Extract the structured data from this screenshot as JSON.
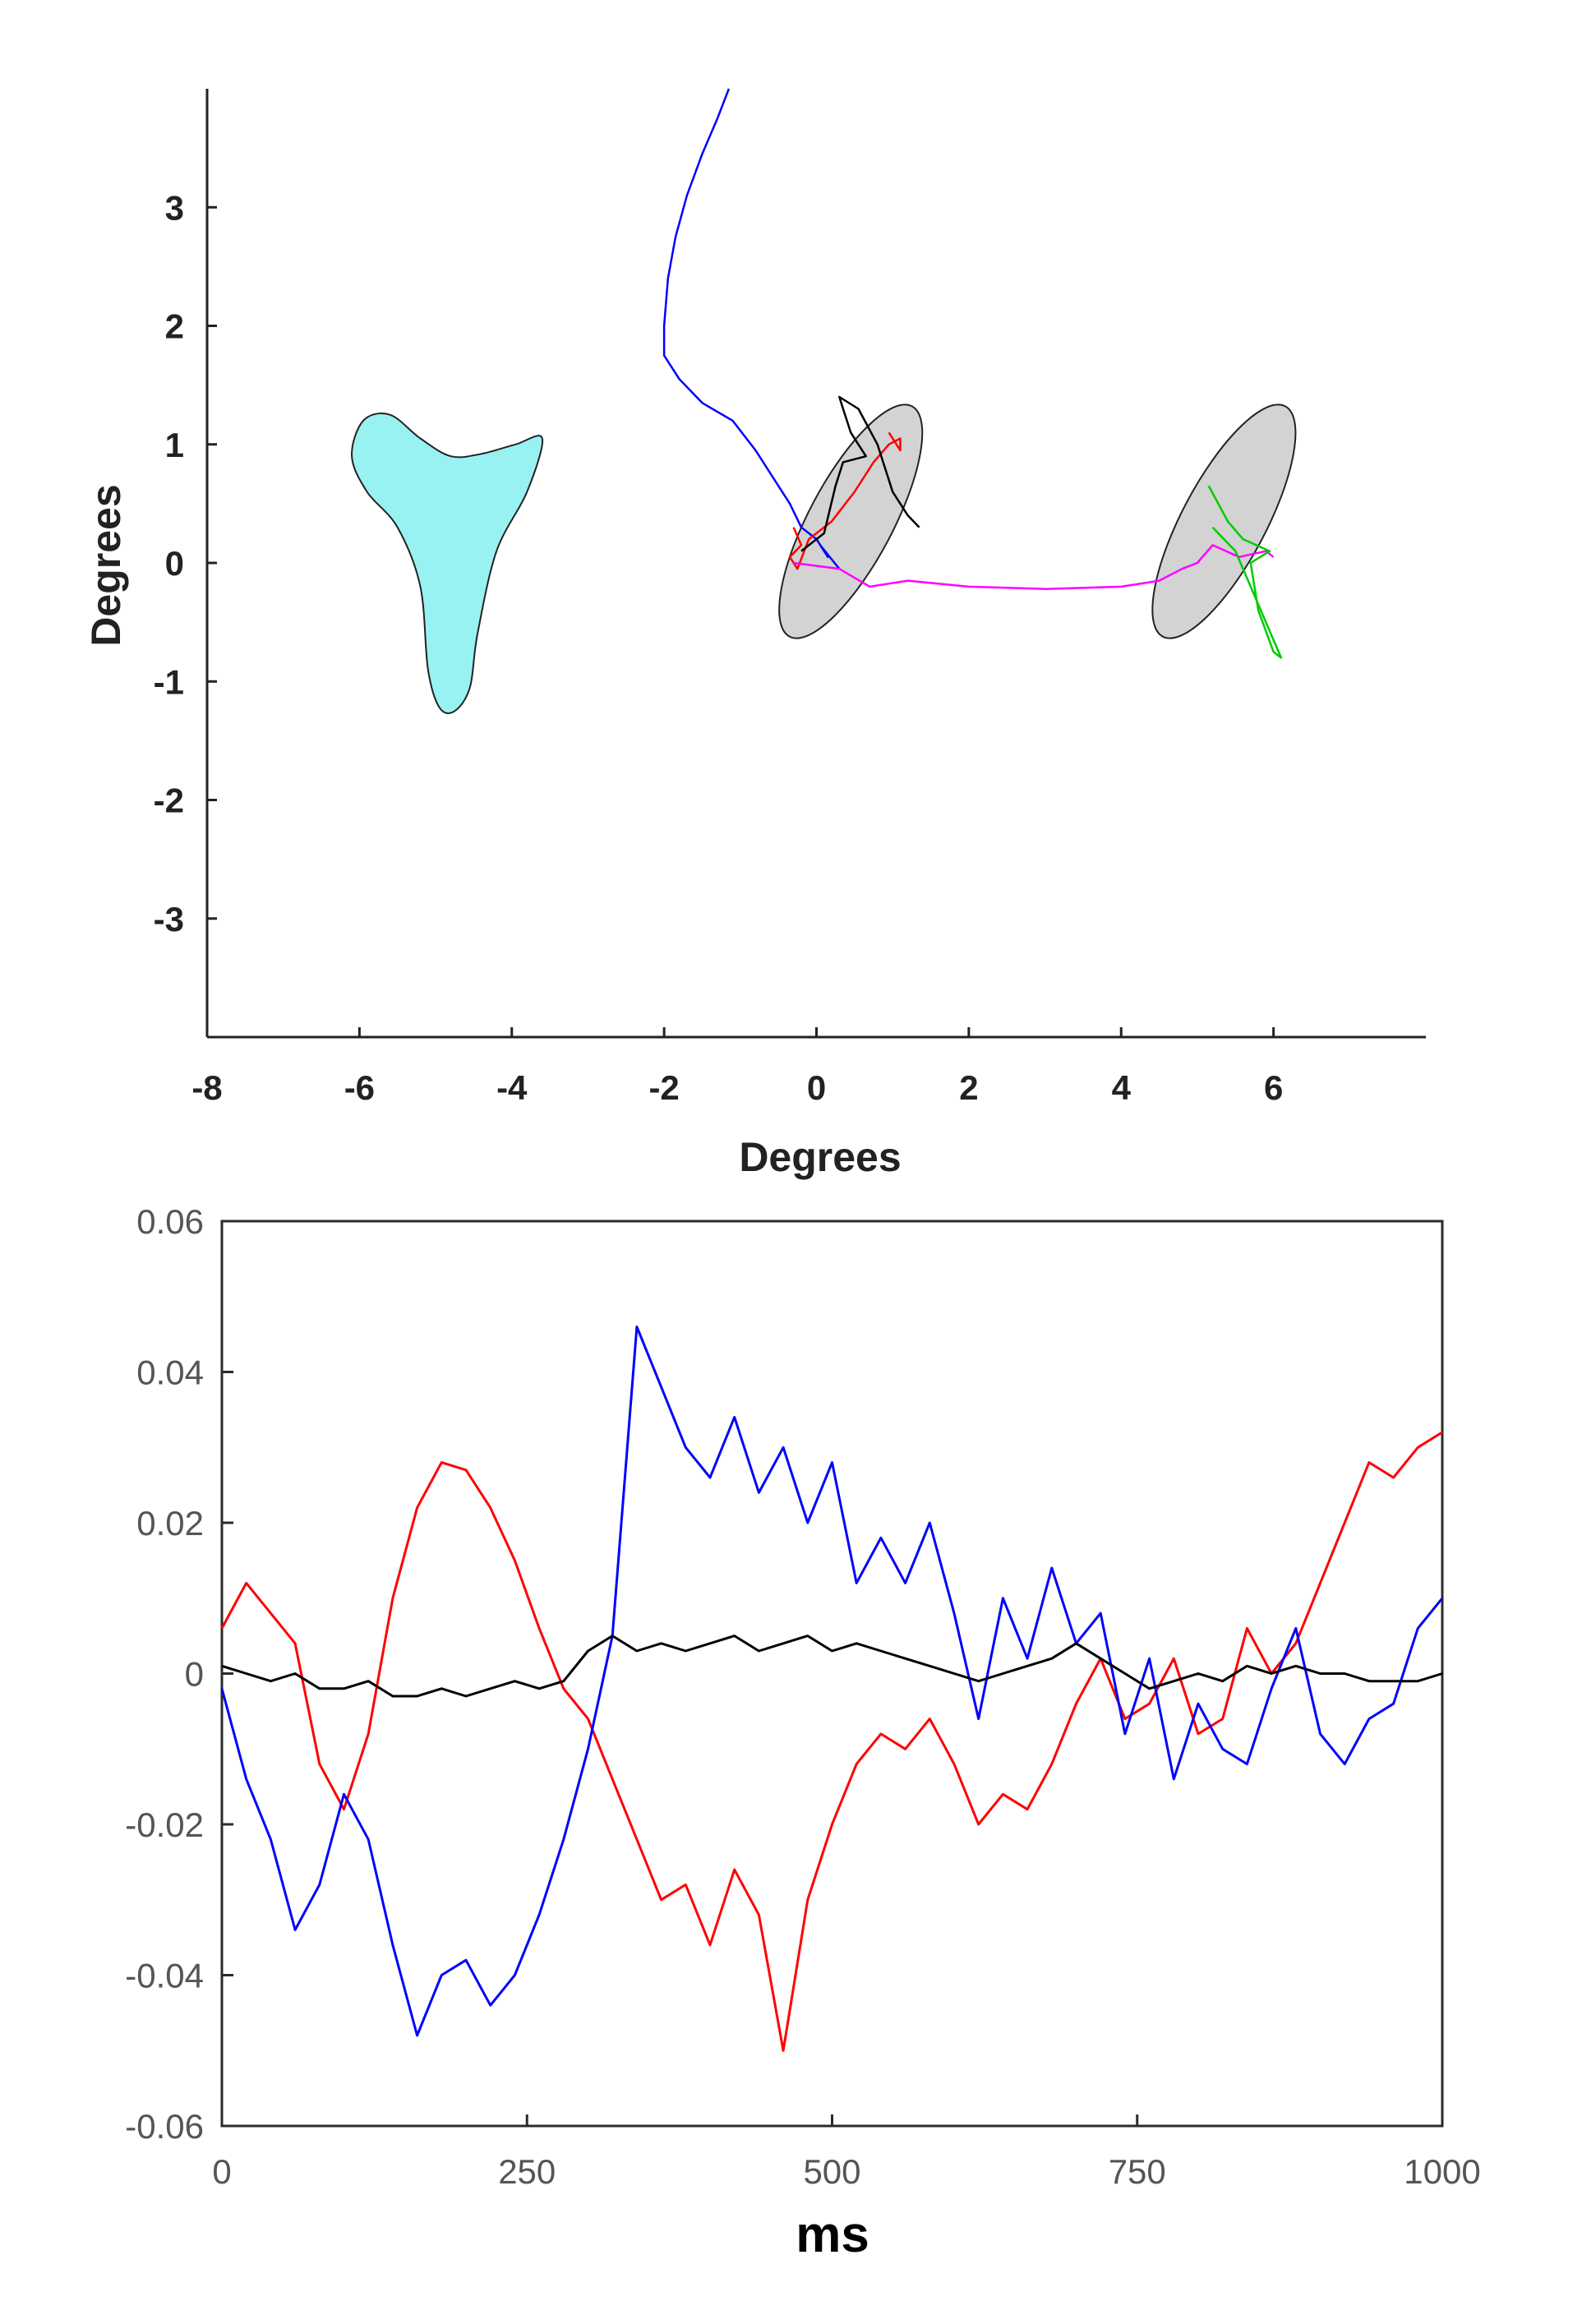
{
  "chart_data": [
    {
      "type": "scatter",
      "title": "",
      "xlabel": "Degrees",
      "ylabel": "Degrees",
      "xlim": [
        -8,
        8
      ],
      "ylim": [
        -4,
        4
      ],
      "xticks": [
        -8,
        -6,
        -4,
        -2,
        0,
        2,
        4,
        6
      ],
      "yticks": [
        -3,
        -2,
        -1,
        0,
        1,
        2,
        3
      ],
      "grid": false,
      "shapes": [
        {
          "name": "",
          "kind": "blob",
          "fill": "#99f2f2",
          "points": [
            [
              -6.1,
              0.9
            ],
            [
              -5.95,
              1.2
            ],
            [
              -5.6,
              1.25
            ],
            [
              -5.2,
              1.05
            ],
            [
              -4.8,
              0.9
            ],
            [
              -4.4,
              0.92
            ],
            [
              -3.95,
              1.0
            ],
            [
              -3.6,
              1.05
            ],
            [
              -3.8,
              0.6
            ],
            [
              -4.2,
              0.1
            ],
            [
              -4.45,
              -0.6
            ],
            [
              -4.55,
              -1.05
            ],
            [
              -4.75,
              -1.25
            ],
            [
              -4.95,
              -1.22
            ],
            [
              -5.1,
              -0.9
            ],
            [
              -5.2,
              -0.2
            ],
            [
              -5.5,
              0.3
            ],
            [
              -5.9,
              0.6
            ]
          ]
        },
        {
          "name": "",
          "kind": "ellipse",
          "fill": "#d3d3d3",
          "cx": 0.45,
          "cy": 0.35,
          "rx": 1.1,
          "ry": 0.55,
          "angle_deg": -62
        },
        {
          "name": "",
          "kind": "ellipse",
          "fill": "#d3d3d3",
          "cx": 5.35,
          "cy": 0.35,
          "rx": 1.1,
          "ry": 0.55,
          "angle_deg": -62
        }
      ],
      "series": [
        {
          "name": "",
          "color": "#0000ff",
          "points": [
            [
              -1.15,
              4.0
            ],
            [
              -1.3,
              3.75
            ],
            [
              -1.5,
              3.45
            ],
            [
              -1.7,
              3.1
            ],
            [
              -1.85,
              2.75
            ],
            [
              -1.95,
              2.4
            ],
            [
              -2.0,
              2.0
            ],
            [
              -2.0,
              1.75
            ],
            [
              -1.8,
              1.55
            ],
            [
              -1.5,
              1.35
            ],
            [
              -1.1,
              1.2
            ],
            [
              -0.8,
              0.95
            ],
            [
              -0.55,
              0.7
            ],
            [
              -0.35,
              0.5
            ],
            [
              -0.2,
              0.3
            ],
            [
              0.0,
              0.2
            ],
            [
              0.15,
              0.05
            ],
            [
              0.05,
              0.15
            ],
            [
              0.3,
              -0.05
            ]
          ]
        },
        {
          "name": "",
          "color": "#ff0000",
          "points": [
            [
              -0.3,
              0.3
            ],
            [
              -0.2,
              0.15
            ],
            [
              -0.35,
              0.05
            ],
            [
              -0.25,
              -0.05
            ],
            [
              -0.1,
              0.2
            ],
            [
              0.2,
              0.35
            ],
            [
              0.5,
              0.6
            ],
            [
              0.75,
              0.85
            ],
            [
              0.95,
              1.0
            ],
            [
              1.1,
              1.05
            ],
            [
              1.1,
              0.95
            ],
            [
              0.95,
              1.1
            ]
          ]
        },
        {
          "name": "",
          "color": "#000000",
          "points": [
            [
              -0.2,
              0.1
            ],
            [
              0.1,
              0.25
            ],
            [
              0.25,
              0.65
            ],
            [
              0.35,
              0.85
            ],
            [
              0.65,
              0.9
            ],
            [
              0.45,
              1.1
            ],
            [
              0.35,
              1.3
            ],
            [
              0.3,
              1.4
            ],
            [
              0.55,
              1.3
            ],
            [
              0.8,
              1.0
            ],
            [
              1.0,
              0.6
            ],
            [
              1.2,
              0.4
            ],
            [
              1.35,
              0.3
            ]
          ]
        },
        {
          "name": "",
          "color": "#ff00ff",
          "points": [
            [
              -0.3,
              0.0
            ],
            [
              0.3,
              -0.05
            ],
            [
              0.7,
              -0.2
            ],
            [
              1.2,
              -0.15
            ],
            [
              2.0,
              -0.2
            ],
            [
              3.0,
              -0.22
            ],
            [
              4.0,
              -0.2
            ],
            [
              4.5,
              -0.15
            ],
            [
              4.8,
              -0.05
            ],
            [
              5.0,
              0.0
            ],
            [
              5.2,
              0.15
            ],
            [
              5.55,
              0.05
            ],
            [
              5.9,
              0.1
            ],
            [
              6.0,
              0.05
            ]
          ]
        },
        {
          "name": "",
          "color": "#00cc00",
          "points": [
            [
              5.15,
              0.65
            ],
            [
              5.4,
              0.35
            ],
            [
              5.6,
              0.2
            ],
            [
              5.95,
              0.1
            ],
            [
              5.7,
              0.0
            ],
            [
              5.8,
              -0.4
            ],
            [
              6.0,
              -0.75
            ],
            [
              6.1,
              -0.8
            ],
            [
              5.5,
              0.1
            ],
            [
              5.2,
              0.3
            ]
          ]
        }
      ]
    },
    {
      "type": "line",
      "title": "",
      "xlabel": "ms",
      "ylabel": "",
      "xlim": [
        0,
        1000
      ],
      "ylim": [
        -0.06,
        0.06
      ],
      "xtick_labels": [
        "0",
        "250",
        "500",
        "750",
        "1000"
      ],
      "ytick_labels": [
        "0.06",
        "0.04",
        "0.02",
        "0",
        "-0.02",
        "-0.04",
        "-0.06"
      ],
      "xticks": [
        0,
        250,
        500,
        750,
        1000
      ],
      "yticks": [
        0.06,
        0.04,
        0.02,
        0,
        -0.02,
        -0.04,
        -0.06
      ],
      "grid": false,
      "series": [
        {
          "name": "",
          "color": "#ff0000",
          "x": [
            0,
            20,
            40,
            60,
            80,
            100,
            120,
            140,
            160,
            180,
            200,
            220,
            240,
            260,
            280,
            300,
            320,
            340,
            360,
            380,
            400,
            420,
            440,
            460,
            480,
            500,
            520,
            540,
            560,
            580,
            600,
            620,
            640,
            660,
            680,
            700,
            720,
            740,
            760,
            780,
            800,
            820,
            840,
            860,
            880,
            900,
            920,
            940,
            960,
            980,
            1000
          ],
          "y": [
            0.006,
            0.012,
            0.008,
            0.004,
            -0.012,
            -0.018,
            -0.008,
            0.01,
            0.022,
            0.028,
            0.027,
            0.022,
            0.015,
            0.006,
            -0.002,
            -0.006,
            -0.014,
            -0.022,
            -0.03,
            -0.028,
            -0.036,
            -0.026,
            -0.032,
            -0.05,
            -0.03,
            -0.02,
            -0.012,
            -0.008,
            -0.01,
            -0.006,
            -0.012,
            -0.02,
            -0.016,
            -0.018,
            -0.012,
            -0.004,
            0.002,
            -0.006,
            -0.004,
            0.002,
            -0.008,
            -0.006,
            0.006,
            0.0,
            0.004,
            0.012,
            0.02,
            0.028,
            0.026,
            0.03,
            0.032
          ]
        },
        {
          "name": "",
          "color": "#0000ff",
          "x": [
            0,
            20,
            40,
            60,
            80,
            100,
            120,
            140,
            160,
            180,
            200,
            220,
            240,
            260,
            280,
            300,
            320,
            340,
            360,
            380,
            400,
            420,
            440,
            460,
            480,
            500,
            520,
            540,
            560,
            580,
            600,
            620,
            640,
            660,
            680,
            700,
            720,
            740,
            760,
            780,
            800,
            820,
            840,
            860,
            880,
            900,
            920,
            940,
            960,
            980,
            1000
          ],
          "y": [
            -0.002,
            -0.014,
            -0.022,
            -0.034,
            -0.028,
            -0.016,
            -0.022,
            -0.036,
            -0.048,
            -0.04,
            -0.038,
            -0.044,
            -0.04,
            -0.032,
            -0.022,
            -0.01,
            0.005,
            0.046,
            0.038,
            0.03,
            0.026,
            0.034,
            0.024,
            0.03,
            0.02,
            0.028,
            0.012,
            0.018,
            0.012,
            0.02,
            0.008,
            -0.006,
            0.01,
            0.002,
            0.014,
            0.004,
            0.008,
            -0.008,
            0.002,
            -0.014,
            -0.004,
            -0.01,
            -0.012,
            -0.002,
            0.006,
            -0.008,
            -0.012,
            -0.006,
            -0.004,
            0.006,
            0.01
          ]
        },
        {
          "name": "",
          "color": "#000000",
          "x": [
            0,
            20,
            40,
            60,
            80,
            100,
            120,
            140,
            160,
            180,
            200,
            220,
            240,
            260,
            280,
            300,
            320,
            340,
            360,
            380,
            400,
            420,
            440,
            460,
            480,
            500,
            520,
            540,
            560,
            580,
            600,
            620,
            640,
            660,
            680,
            700,
            720,
            740,
            760,
            780,
            800,
            820,
            840,
            860,
            880,
            900,
            920,
            940,
            960,
            980,
            1000
          ],
          "y": [
            0.001,
            0.0,
            -0.001,
            0.0,
            -0.002,
            -0.002,
            -0.001,
            -0.003,
            -0.003,
            -0.002,
            -0.003,
            -0.002,
            -0.001,
            -0.002,
            -0.001,
            0.003,
            0.005,
            0.003,
            0.004,
            0.003,
            0.004,
            0.005,
            0.003,
            0.004,
            0.005,
            0.003,
            0.004,
            0.003,
            0.002,
            0.001,
            0.0,
            -0.001,
            0.0,
            0.001,
            0.002,
            0.004,
            0.002,
            0.0,
            -0.002,
            -0.001,
            0.0,
            -0.001,
            0.001,
            0.0,
            0.001,
            0.0,
            0.0,
            -0.001,
            -0.001,
            -0.001,
            0.0
          ]
        }
      ]
    }
  ]
}
